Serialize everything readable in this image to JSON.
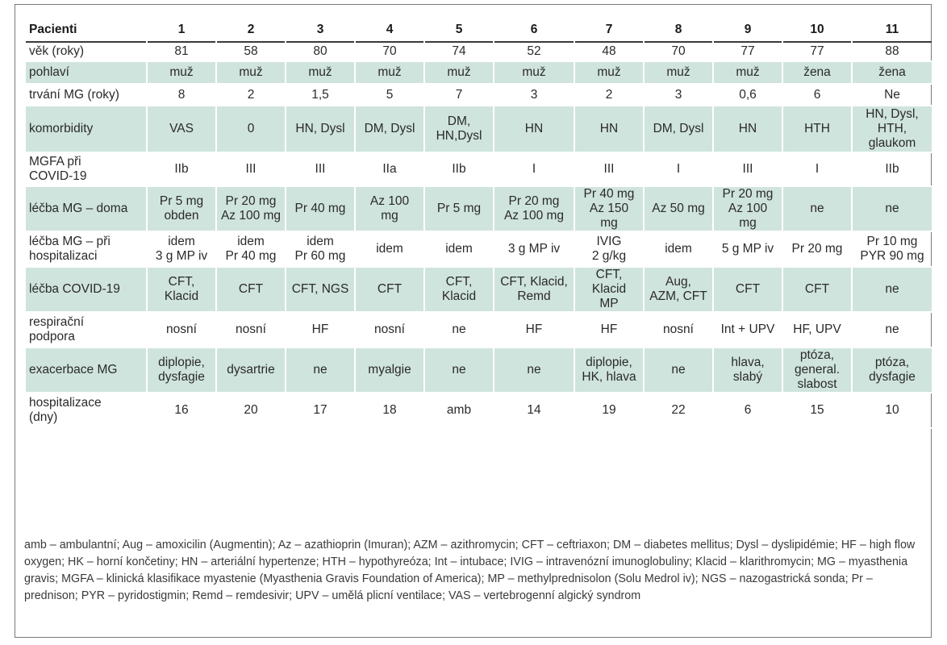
{
  "header": {
    "label": "Pacienti",
    "cols": [
      "1",
      "2",
      "3",
      "4",
      "5",
      "6",
      "7",
      "8",
      "9",
      "10",
      "11"
    ]
  },
  "rows": [
    {
      "label": "věk (roky)",
      "shade": false,
      "cells": [
        "81",
        "58",
        "80",
        "70",
        "74",
        "52",
        "48",
        "70",
        "77",
        "77",
        "88"
      ]
    },
    {
      "label": "pohlaví",
      "shade": true,
      "cells": [
        "muž",
        "muž",
        "muž",
        "muž",
        "muž",
        "muž",
        "muž",
        "muž",
        "muž",
        "žena",
        "žena"
      ]
    },
    {
      "label": "trvání MG (roky)",
      "shade": false,
      "cells": [
        "8",
        "2",
        "1,5",
        "5",
        "7",
        "3",
        "2",
        "3",
        "0,6",
        "6",
        "Ne"
      ]
    },
    {
      "label": "komorbidity",
      "shade": true,
      "cells": [
        "VAS",
        "0",
        "HN, Dysl",
        "DM, Dysl",
        "DM,\nHN,Dysl",
        "HN",
        "HN",
        "DM, Dysl",
        "HN",
        "HTH",
        "HN, Dysl,\nHTH,\nglaukom"
      ]
    },
    {
      "label": "MGFA při\nCOVID-19",
      "shade": false,
      "cells": [
        "IIb",
        "III",
        "III",
        "IIa",
        "IIb",
        "I",
        "III",
        "I",
        "III",
        "I",
        "IIb"
      ]
    },
    {
      "label": "léčba MG – doma",
      "shade": true,
      "cells": [
        "Pr 5 mg\nobden",
        "Pr 20 mg\nAz 100 mg",
        "Pr 40 mg",
        "Az 100\nmg",
        "Pr 5 mg",
        "Pr 20 mg\nAz 100 mg",
        "Pr 40 mg\nAz 150\nmg",
        "Az 50 mg",
        "Pr 20 mg\nAz 100\nmg",
        "ne",
        "ne"
      ]
    },
    {
      "label": "léčba MG – při\nhospitalizaci",
      "shade": false,
      "cells": [
        "idem\n3 g MP iv",
        "idem\nPr 40 mg",
        "idem\nPr 60 mg",
        "idem",
        "idem",
        "3 g MP iv",
        "IVIG\n2 g/kg",
        "idem",
        "5 g MP iv",
        "Pr 20 mg",
        "Pr 10 mg\nPYR 90 mg"
      ]
    },
    {
      "label": "léčba COVID-19",
      "shade": true,
      "cells": [
        "CFT,\nKlacid",
        "CFT",
        "CFT, NGS",
        "CFT",
        "CFT,\nKlacid",
        "CFT, Klacid,\nRemd",
        "CFT,\nKlacid\nMP",
        "Aug,\nAZM, CFT",
        "CFT",
        "CFT",
        "ne"
      ]
    },
    {
      "label": "respirační\npodpora",
      "shade": false,
      "cells": [
        "nosní",
        "nosní",
        "HF",
        "nosní",
        "ne",
        "HF",
        "HF",
        "nosní",
        "Int + UPV",
        "HF, UPV",
        "ne"
      ]
    },
    {
      "label": "exacerbace MG",
      "shade": true,
      "cells": [
        "diplopie,\ndysfagie",
        "dysartrie",
        "ne",
        "myalgie",
        "ne",
        "ne",
        "diplopie,\nHK, hlava",
        "ne",
        "hlava,\nslabý",
        "ptóza,\ngeneral.\nslabost",
        "ptóza,\ndysfagie"
      ]
    },
    {
      "label": "hospitalizace\n(dny)",
      "shade": false,
      "cells": [
        "16",
        "20",
        "17",
        "18",
        "amb",
        "14",
        "19",
        "22",
        "6",
        "15",
        "10"
      ]
    }
  ],
  "row_heights": [],
  "footnote": "amb – ambulantní; Aug – amoxicilin (Augmentin); Az – azathioprin (Imuran); AZM – azithromycin; CFT – ceftriaxon; DM – diabetes mellitus; Dysl – dyslipidémie; HF – high flow oxygen; HK – horní končetiny; HN – arteriální hypertenze; HTH – hypothyreóza; Int – intubace; IVIG – intravenózní imunoglobuliny; Klacid – klarithromycin; MG – myasthenia gravis; MGFA – klinická klasifikace myastenie (Myasthenia Gravis Foundation of America); MP – methylprednisolon (Solu Medrol iv); NGS – nazogastrická sonda; Pr – prednison; PYR – pyridostigmin; Remd – remdesivir; UPV – umělá plicní ventilace; VAS – vertebrogenní algický syndrom"
}
